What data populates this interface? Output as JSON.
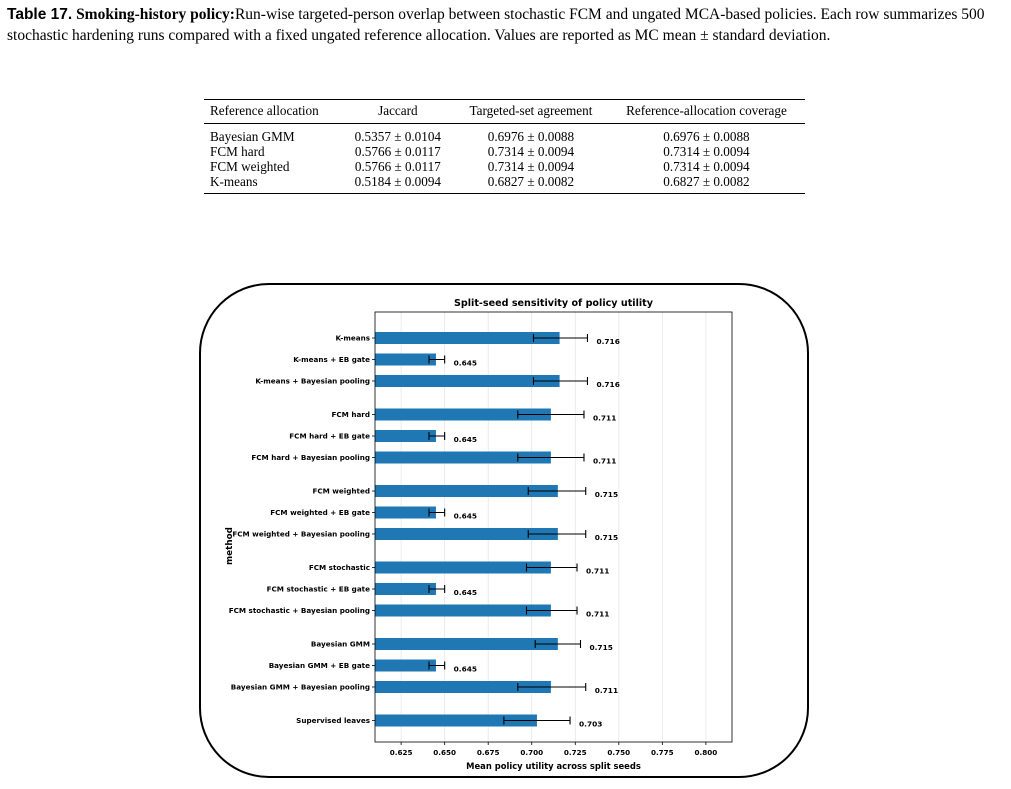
{
  "caption": {
    "label": "Table 17.",
    "title": "Smoking-history policy:",
    "text": "Run-wise targeted-person overlap between stochastic FCM and ungated MCA-based policies. Each row summarizes 500 stochastic hardening runs compared with a fixed ungated reference allocation. Values are reported as MC mean ± standard deviation."
  },
  "table": {
    "headers": [
      "Reference allocation",
      "Jaccard",
      "Targeted-set agreement",
      "Reference-allocation coverage"
    ],
    "rows": [
      [
        "Bayesian GMM",
        "0.5357 ± 0.0104",
        "0.6976 ± 0.0088",
        "0.6976 ± 0.0088"
      ],
      [
        "FCM hard",
        "0.5766 ± 0.0117",
        "0.7314 ± 0.0094",
        "0.7314 ± 0.0094"
      ],
      [
        "FCM weighted",
        "0.5766 ± 0.0117",
        "0.7314 ± 0.0094",
        "0.7314 ± 0.0094"
      ],
      [
        "K-means",
        "0.5184 ± 0.0094",
        "0.6827 ± 0.0082",
        "0.6827 ± 0.0082"
      ]
    ]
  },
  "chart_data": {
    "type": "bar",
    "orientation": "horizontal",
    "title": "Split-seed sensitivity of policy utility",
    "xlabel": "Mean policy utility across split seeds",
    "ylabel": "method",
    "xlim": [
      0.61,
      0.815
    ],
    "xticks": [
      0.625,
      0.65,
      0.675,
      0.7,
      0.725,
      0.75,
      0.775,
      0.8
    ],
    "xtick_labels": [
      "0.625",
      "0.650",
      "0.675",
      "0.700",
      "0.725",
      "0.750",
      "0.775",
      "0.800"
    ],
    "grid": "vertical",
    "bar_color": "#1f77b4",
    "categories": [
      "K-means",
      "K-means + EB gate",
      "K-means + Bayesian pooling",
      "FCM hard",
      "FCM hard + EB gate",
      "FCM hard + Bayesian pooling",
      "FCM weighted",
      "FCM weighted + EB gate",
      "FCM weighted + Bayesian pooling",
      "FCM stochastic",
      "FCM stochastic + EB gate",
      "FCM stochastic + Bayesian pooling",
      "Bayesian GMM",
      "Bayesian GMM + EB gate",
      "Bayesian GMM + Bayesian pooling",
      "Supervised leaves"
    ],
    "values": [
      0.716,
      0.645,
      0.716,
      0.711,
      0.645,
      0.711,
      0.715,
      0.645,
      0.715,
      0.711,
      0.645,
      0.711,
      0.715,
      0.645,
      0.711,
      0.703
    ],
    "value_labels": [
      "0.716",
      "0.645",
      "0.716",
      "0.711",
      "0.645",
      "0.711",
      "0.715",
      "0.645",
      "0.715",
      "0.711",
      "0.645",
      "0.711",
      "0.715",
      "0.645",
      "0.711",
      "0.703"
    ],
    "error_low": [
      0.701,
      0.641,
      0.701,
      0.692,
      0.641,
      0.692,
      0.698,
      0.641,
      0.698,
      0.697,
      0.641,
      0.697,
      0.702,
      0.641,
      0.692,
      0.684
    ],
    "error_high": [
      0.732,
      0.65,
      0.732,
      0.73,
      0.65,
      0.73,
      0.731,
      0.65,
      0.731,
      0.726,
      0.65,
      0.726,
      0.728,
      0.65,
      0.731,
      0.722
    ]
  }
}
